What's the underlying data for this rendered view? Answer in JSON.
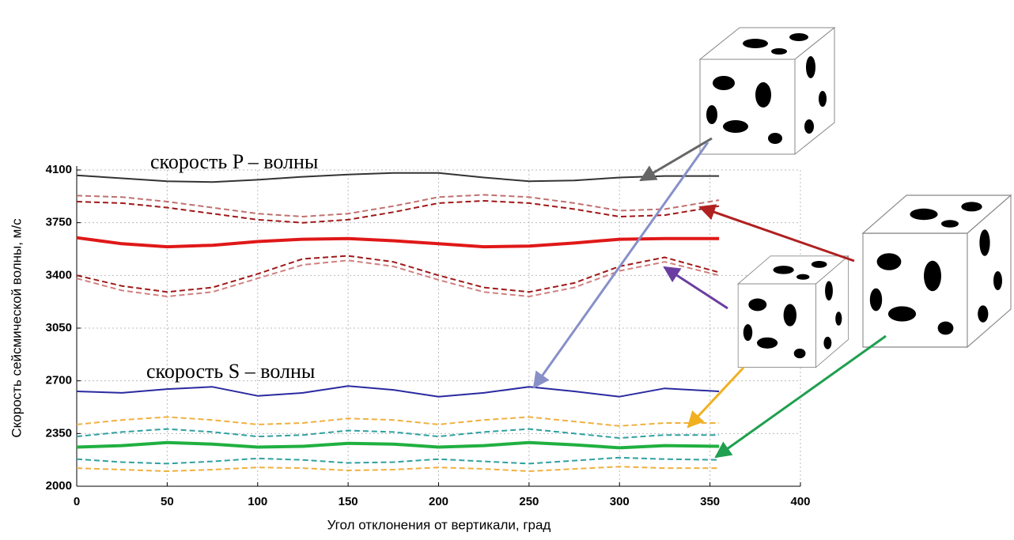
{
  "chart_data": {
    "type": "line",
    "x_label": "Угол отклонения от вертикали, град",
    "y_label": "Скорость сейсмической волны, м/с",
    "annotations": [
      "скорость P – волны",
      "скорость S – волны"
    ],
    "x": [
      0,
      25,
      50,
      75,
      100,
      125,
      150,
      175,
      200,
      225,
      250,
      275,
      300,
      325,
      355
    ],
    "xlim": [
      0,
      400
    ],
    "xticks": [
      0,
      50,
      100,
      150,
      200,
      250,
      300,
      350,
      400
    ],
    "ylim": [
      2000,
      4100
    ],
    "yticks": [
      2000,
      2350,
      2700,
      3050,
      3400,
      3750,
      4100
    ],
    "grid": true,
    "series": [
      {
        "color": "#333333",
        "style": "solid",
        "weight": "normal",
        "values": [
          4065,
          4045,
          4025,
          4020,
          4035,
          4055,
          4070,
          4080,
          4080,
          4050,
          4025,
          4030,
          4050,
          4060,
          4060
        ]
      },
      {
        "color": "#c07070",
        "style": "dashed",
        "weight": "normal",
        "values": [
          3930,
          3920,
          3890,
          3850,
          3810,
          3790,
          3810,
          3860,
          3920,
          3935,
          3920,
          3880,
          3830,
          3840,
          3900
        ]
      },
      {
        "color": "#a01818",
        "style": "dashed",
        "weight": "normal",
        "values": [
          3890,
          3880,
          3850,
          3810,
          3770,
          3750,
          3770,
          3820,
          3880,
          3895,
          3880,
          3840,
          3790,
          3800,
          3860
        ]
      },
      {
        "color": "#e01818",
        "style": "solid",
        "weight": "bold",
        "values": [
          3650,
          3610,
          3590,
          3600,
          3625,
          3640,
          3645,
          3630,
          3610,
          3590,
          3595,
          3615,
          3640,
          3645,
          3645
        ]
      },
      {
        "color": "#a01818",
        "style": "dashed",
        "weight": "normal",
        "values": [
          3400,
          3330,
          3290,
          3320,
          3410,
          3510,
          3530,
          3490,
          3400,
          3320,
          3290,
          3350,
          3460,
          3520,
          3420
        ]
      },
      {
        "color": "#d08080",
        "style": "dashed",
        "weight": "normal",
        "values": [
          3380,
          3300,
          3260,
          3290,
          3380,
          3470,
          3500,
          3460,
          3370,
          3290,
          3260,
          3320,
          3430,
          3490,
          3400
        ]
      },
      {
        "color": "#2a2aa0",
        "style": "solid",
        "weight": "normal",
        "values": [
          2630,
          2620,
          2645,
          2660,
          2600,
          2620,
          2665,
          2640,
          2595,
          2620,
          2660,
          2630,
          2595,
          2650,
          2630
        ]
      },
      {
        "color": "#f0b040",
        "style": "dashed",
        "weight": "normal",
        "values": [
          2410,
          2440,
          2460,
          2440,
          2410,
          2420,
          2450,
          2440,
          2410,
          2440,
          2460,
          2430,
          2400,
          2420,
          2420
        ]
      },
      {
        "color": "#30a0a0",
        "style": "dashed",
        "weight": "normal",
        "values": [
          2330,
          2360,
          2380,
          2360,
          2330,
          2340,
          2370,
          2360,
          2330,
          2360,
          2380,
          2350,
          2320,
          2340,
          2340
        ]
      },
      {
        "color": "#20b040",
        "style": "solid",
        "weight": "bold",
        "values": [
          2260,
          2270,
          2290,
          2280,
          2260,
          2265,
          2285,
          2280,
          2260,
          2270,
          2290,
          2275,
          2255,
          2270,
          2265
        ]
      },
      {
        "color": "#30a0a0",
        "style": "dashed",
        "weight": "normal",
        "values": [
          2180,
          2160,
          2150,
          2165,
          2185,
          2175,
          2155,
          2160,
          2180,
          2165,
          2150,
          2170,
          2190,
          2180,
          2175
        ]
      },
      {
        "color": "#f0b040",
        "style": "dashed",
        "weight": "normal",
        "values": [
          2120,
          2110,
          2100,
          2110,
          2125,
          2120,
          2105,
          2110,
          2125,
          2115,
          2100,
          2115,
          2130,
          2120,
          2120
        ]
      }
    ]
  }
}
